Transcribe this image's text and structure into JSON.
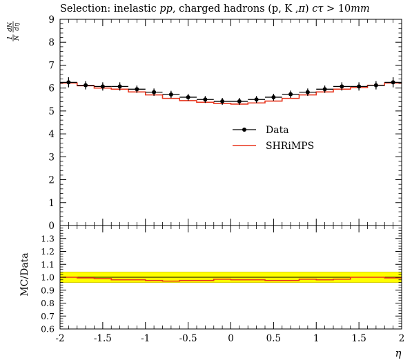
{
  "chart_data": {
    "type": "line",
    "title": "Selection: inelastic pp, charged hadrons (p, K ,π) cτ > 10mm",
    "title_parts": {
      "prefix": "Selection: inelastic ",
      "pp": "pp",
      "middle": ", charged hadrons (p, K ,",
      "pi": "π",
      "close": ") ",
      "ctau": "cτ",
      "cut": " > 10",
      "unit": "mm"
    },
    "xlabel": "η",
    "ylabel": {
      "frac1_num": "1",
      "frac1_den": "N",
      "frac2_num": "dN",
      "frac2_den": "dη"
    },
    "ratio_ylabel": "MC/Data",
    "xlim": [
      -2,
      2
    ],
    "ylim": [
      0,
      9
    ],
    "ratio_ylim": [
      0.6,
      1.4
    ],
    "x_ticks": [
      -2,
      -1.5,
      -1,
      -0.5,
      0,
      0.5,
      1,
      1.5,
      2
    ],
    "x_tick_labels": [
      "-2",
      "-1.5",
      "-1",
      "-0.5",
      "0",
      "0.5",
      "1",
      "1.5",
      "2"
    ],
    "y_ticks": [
      0,
      1,
      2,
      3,
      4,
      5,
      6,
      7,
      8,
      9
    ],
    "y_tick_labels": [
      "0",
      "1",
      "2",
      "3",
      "4",
      "5",
      "6",
      "7",
      "8",
      "9"
    ],
    "ratio_ticks": [
      0.6,
      0.7,
      0.8,
      0.9,
      1.0,
      1.1,
      1.2,
      1.3
    ],
    "ratio_tick_labels": [
      "0.6",
      "0.7",
      "0.8",
      "0.9",
      "1.0",
      "1.1",
      "1.2",
      "1.3"
    ],
    "legend_position": "center-right",
    "bin_edges": [
      -2.0,
      -1.8,
      -1.6,
      -1.4,
      -1.2,
      -1.0,
      -0.8,
      -0.6,
      -0.4,
      -0.2,
      0.0,
      0.2,
      0.4,
      0.6,
      0.8,
      1.0,
      1.2,
      1.4,
      1.6,
      1.8,
      2.0
    ],
    "series": [
      {
        "name": "Data",
        "style": "points",
        "color": "#000000",
        "x": [
          -1.9,
          -1.7,
          -1.5,
          -1.3,
          -1.1,
          -0.9,
          -0.7,
          -0.5,
          -0.3,
          -0.1,
          0.1,
          0.3,
          0.5,
          0.7,
          0.9,
          1.1,
          1.3,
          1.5,
          1.7,
          1.9
        ],
        "y": [
          6.25,
          6.12,
          6.07,
          6.07,
          5.95,
          5.82,
          5.72,
          5.6,
          5.5,
          5.42,
          5.42,
          5.5,
          5.6,
          5.73,
          5.82,
          5.95,
          6.07,
          6.07,
          6.12,
          6.25
        ],
        "yerr": [
          0.22,
          0.18,
          0.18,
          0.18,
          0.16,
          0.16,
          0.16,
          0.15,
          0.15,
          0.15,
          0.15,
          0.15,
          0.15,
          0.16,
          0.16,
          0.16,
          0.18,
          0.18,
          0.18,
          0.22
        ]
      },
      {
        "name": "SHRiMPS",
        "style": "step",
        "color": "#e8341c",
        "y": [
          6.22,
          6.1,
          6.0,
          5.95,
          5.83,
          5.7,
          5.55,
          5.45,
          5.38,
          5.33,
          5.3,
          5.35,
          5.43,
          5.55,
          5.7,
          5.83,
          5.95,
          6.02,
          6.12,
          6.22
        ]
      }
    ],
    "ratio": {
      "band_color": "#ffff00",
      "band_edge_color": "#d8d000",
      "band_low": 0.96,
      "band_high": 1.04,
      "line": 1.0,
      "mc_color": "#e8341c",
      "mc_values": [
        1.0,
        0.995,
        0.99,
        0.98,
        0.98,
        0.975,
        0.97,
        0.975,
        0.975,
        0.985,
        0.98,
        0.98,
        0.975,
        0.975,
        0.985,
        0.98,
        0.985,
        1.0,
        1.0,
        0.995
      ]
    }
  }
}
